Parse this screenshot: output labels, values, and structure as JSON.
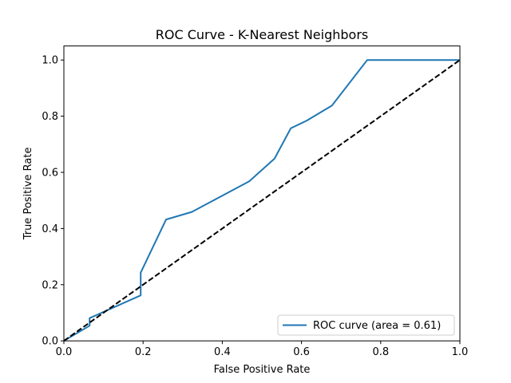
{
  "chart_data": {
    "type": "line",
    "title": "ROC Curve - K-Nearest Neighbors",
    "xlabel": "False Positive Rate",
    "ylabel": "True Positive Rate",
    "xlim": [
      0,
      1
    ],
    "ylim": [
      0,
      1.05
    ],
    "xticks": [
      0.0,
      0.2,
      0.4,
      0.6,
      0.8,
      1.0
    ],
    "xtick_labels": [
      "0.0",
      "0.2",
      "0.4",
      "0.6",
      "0.8",
      "1.0"
    ],
    "yticks": [
      0.0,
      0.2,
      0.4,
      0.6,
      0.8,
      1.0
    ],
    "ytick_labels": [
      "0.0",
      "0.2",
      "0.4",
      "0.6",
      "0.8",
      "1.0"
    ],
    "grid": false,
    "legend_position": "lower-right",
    "series": [
      {
        "name": "ROC curve (area = 0.61)",
        "color": "#1f77b4",
        "style": "solid",
        "x": [
          0.0,
          0.065,
          0.065,
          0.194,
          0.194,
          0.258,
          0.323,
          0.468,
          0.532,
          0.573,
          0.613,
          0.677,
          0.766,
          1.0
        ],
        "y": [
          0.0,
          0.054,
          0.081,
          0.162,
          0.243,
          0.432,
          0.459,
          0.568,
          0.649,
          0.757,
          0.784,
          0.838,
          1.0,
          1.0
        ]
      },
      {
        "name": "",
        "color": "#000000",
        "style": "dashed",
        "x": [
          0.0,
          1.0
        ],
        "y": [
          0.0,
          1.0
        ]
      }
    ]
  }
}
